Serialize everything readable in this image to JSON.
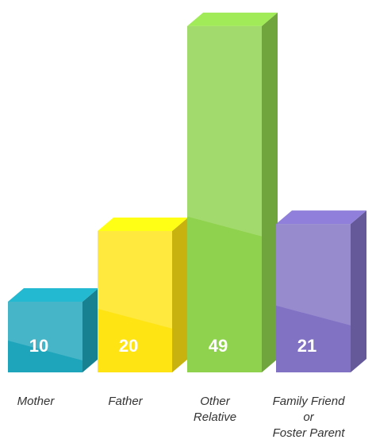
{
  "chart_data": {
    "type": "bar3d",
    "categories": [
      [
        "Mother"
      ],
      [
        "Father"
      ],
      [
        "Other",
        "Relative"
      ],
      [
        "Family Friend",
        "or",
        "Foster Parent"
      ]
    ],
    "values": [
      10,
      20,
      49,
      21
    ],
    "colors": [
      "#1ea5bb",
      "#ffe414",
      "#8fd24e",
      "#8172c4"
    ]
  }
}
